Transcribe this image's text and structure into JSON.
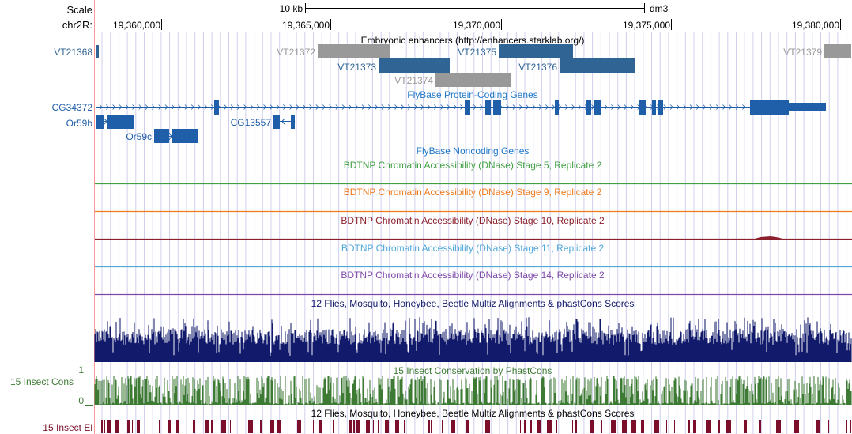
{
  "scale": {
    "label": "Scale",
    "bar_label": "10 kb",
    "assembly": "dm3"
  },
  "ruler": {
    "chrom_label": "chr2R:",
    "ticks": [
      {
        "label": "19,360,000",
        "pos": 19360000
      },
      {
        "label": "19,365,000",
        "pos": 19365000
      },
      {
        "label": "19,370,000",
        "pos": 19370000
      },
      {
        "label": "19,375,000",
        "pos": 19375000
      },
      {
        "label": "19,380,000",
        "pos": 19380000
      }
    ]
  },
  "colors": {
    "gene_blue": "#1f5ea8",
    "enhancer_blue": "#2f6494",
    "enhancer_gray": "#999999",
    "dnase_s5": "#41a043",
    "dnase_s9": "#f07a1c",
    "dnase_s10": "#8b1f2c",
    "dnase_s11": "#4fa8d8",
    "dnase_s14": "#7e4aa8",
    "multiz": "#121a6b",
    "phastcons": "#3d7a34",
    "elements": "#7b0e2a",
    "window_line": "#d0d0ee",
    "left_guide": "#ff9999"
  },
  "tracks": {
    "enhancers": {
      "title": "Embryonic enhancers (http://enhancers.starklab.org/)",
      "items": [
        {
          "name": "VT21368",
          "color": "blue"
        },
        {
          "name": "VT21372",
          "color": "gray"
        },
        {
          "name": "VT21373",
          "color": "blue"
        },
        {
          "name": "VT21374",
          "color": "gray"
        },
        {
          "name": "VT21375",
          "color": "blue"
        },
        {
          "name": "VT21376",
          "color": "blue"
        },
        {
          "name": "VT21379",
          "color": "gray"
        }
      ]
    },
    "protein_genes": {
      "title": "FlyBase Protein-Coding Genes",
      "genes": [
        "CG34372",
        "Or59b",
        "Or59c",
        "CG13557"
      ]
    },
    "noncoding": {
      "title": "FlyBase Noncoding Genes"
    },
    "dnase": [
      {
        "title": "BDTNP Chromatin Accessibility (DNase) Stage 5, Replicate 2",
        "color_key": "dnase_s5"
      },
      {
        "title": "BDTNP Chromatin Accessibility (DNase) Stage 9, Replicate 2",
        "color_key": "dnase_s9"
      },
      {
        "title": "BDTNP Chromatin Accessibility (DNase) Stage 10, Replicate 2",
        "color_key": "dnase_s10"
      },
      {
        "title": "BDTNP Chromatin Accessibility (DNase) Stage 11, Replicate 2",
        "color_key": "dnase_s11"
      },
      {
        "title": "BDTNP Chromatin Accessibility (DNase) Stage 14, Replicate 2",
        "color_key": "dnase_s14"
      }
    ],
    "multiz": {
      "title": "12 Flies, Mosquito, Honeybee, Beetle Multiz Alignments & phastCons Scores"
    },
    "phastcons": {
      "title": "15 Insect Conservation by PhastCons",
      "side_label": "15 Insect Cons",
      "axis_max": "1",
      "axis_min": "0"
    },
    "elements": {
      "title": "12 Flies, Mosquito, Honeybee, Beetle Multiz Alignments & phastCons Scores",
      "side_label": "15 Insect El"
    }
  }
}
